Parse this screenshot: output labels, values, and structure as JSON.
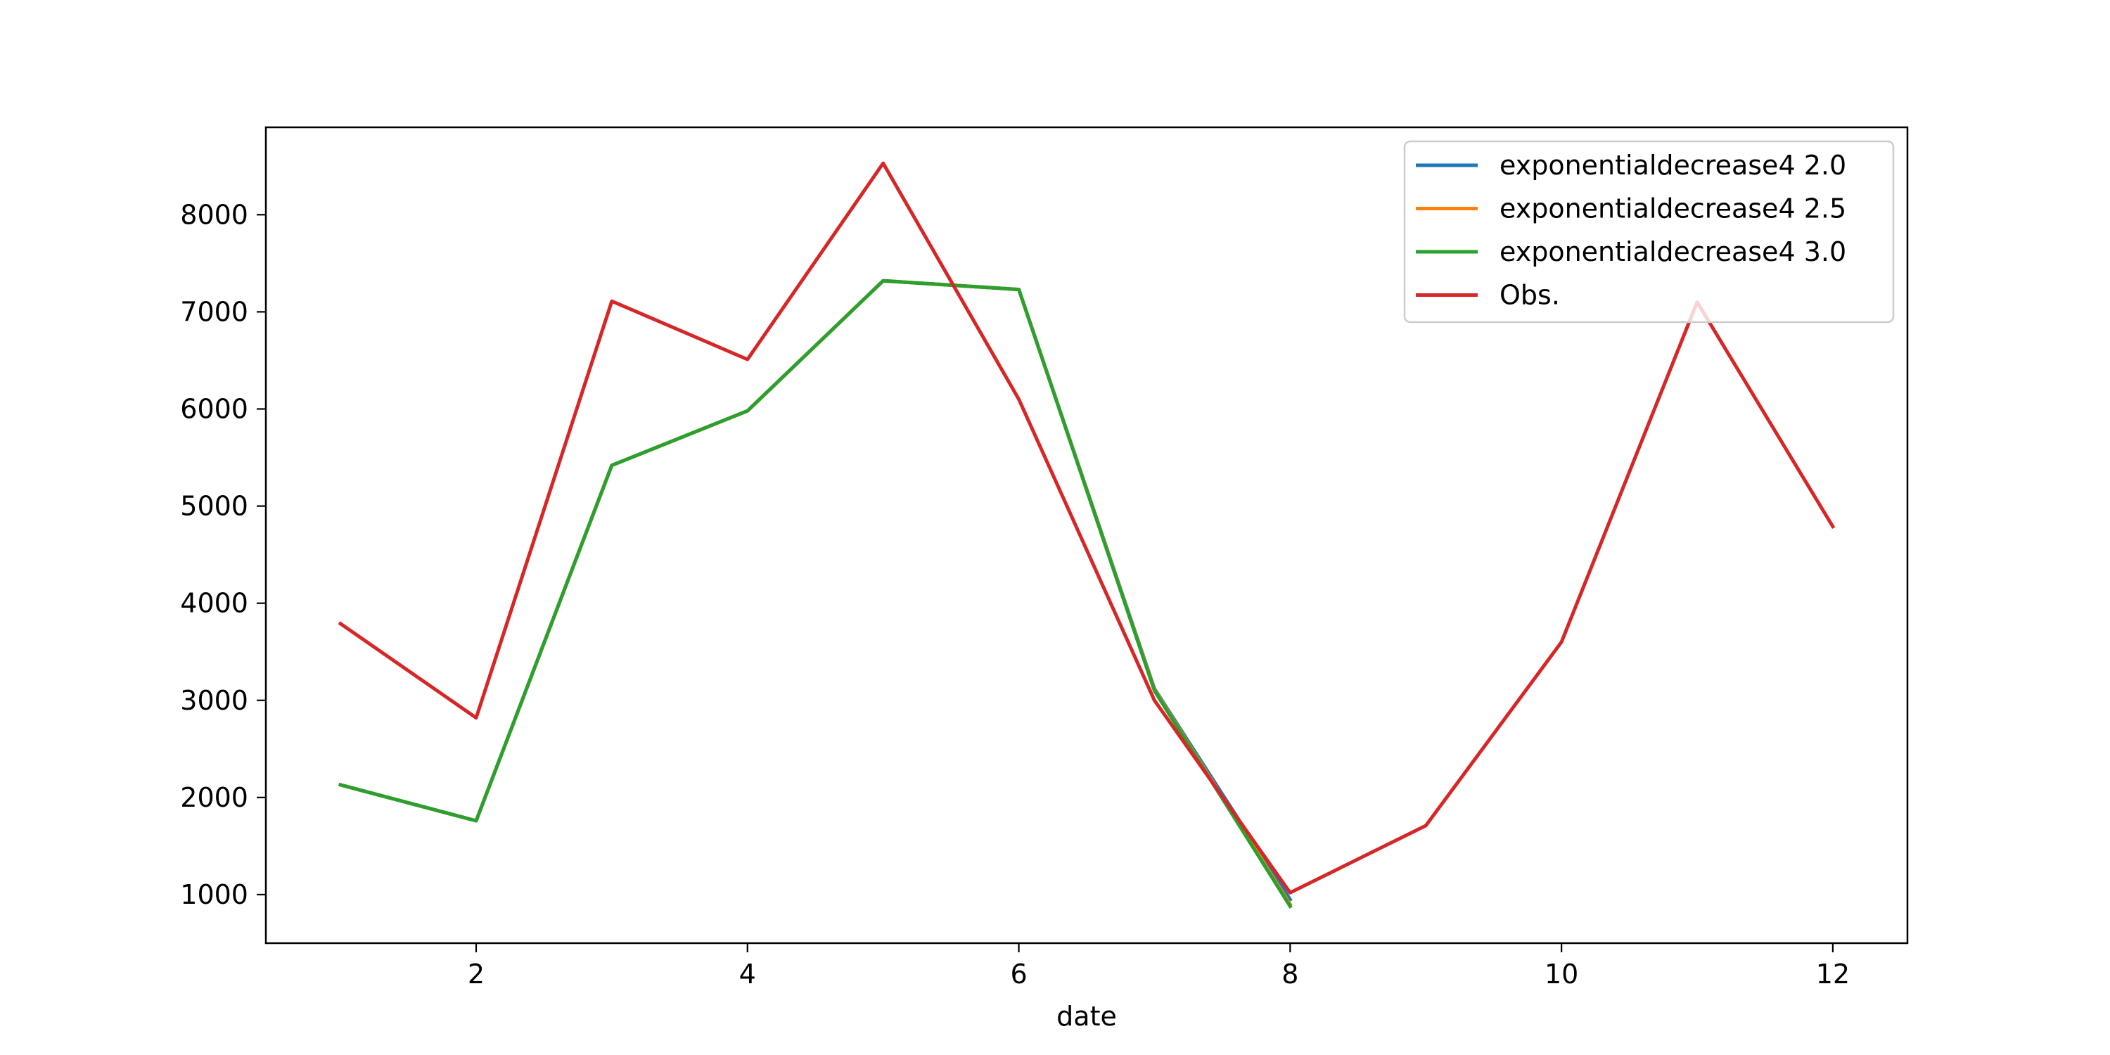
{
  "chart_data": {
    "type": "line",
    "title": "",
    "xlabel": "date",
    "ylabel": "",
    "xlim": [
      0.45,
      12.55
    ],
    "ylim": [
      500,
      8900
    ],
    "xticks": [
      2,
      4,
      6,
      8,
      10,
      12
    ],
    "yticks": [
      1000,
      2000,
      3000,
      4000,
      5000,
      6000,
      7000,
      8000
    ],
    "grid": false,
    "legend_position": "top-right",
    "series": [
      {
        "name": "exponentialdecrease4 2.0",
        "color": "#1f77b4",
        "x": [
          1,
          2,
          3,
          4,
          5,
          6,
          7,
          8
        ],
        "y": [
          2130,
          1760,
          5420,
          5980,
          7320,
          7230,
          3120,
          950
        ]
      },
      {
        "name": "exponentialdecrease4 2.5",
        "color": "#ff7f0e",
        "x": [
          1,
          2,
          3,
          4,
          5,
          6,
          7,
          8
        ],
        "y": [
          2130,
          1760,
          5420,
          5980,
          7320,
          7230,
          3110,
          900
        ]
      },
      {
        "name": "exponentialdecrease4 3.0",
        "color": "#2ca02c",
        "x": [
          1,
          2,
          3,
          4,
          5,
          6,
          7,
          8
        ],
        "y": [
          2130,
          1760,
          5420,
          5980,
          7320,
          7230,
          3100,
          880
        ]
      },
      {
        "name": "Obs.",
        "color": "#d62728",
        "x": [
          1,
          2,
          3,
          4,
          5,
          6,
          7,
          8,
          9,
          10,
          11,
          12
        ],
        "y": [
          3790,
          2820,
          7110,
          6510,
          8530,
          6100,
          3000,
          1020,
          1710,
          3600,
          7100,
          4790
        ]
      }
    ]
  }
}
